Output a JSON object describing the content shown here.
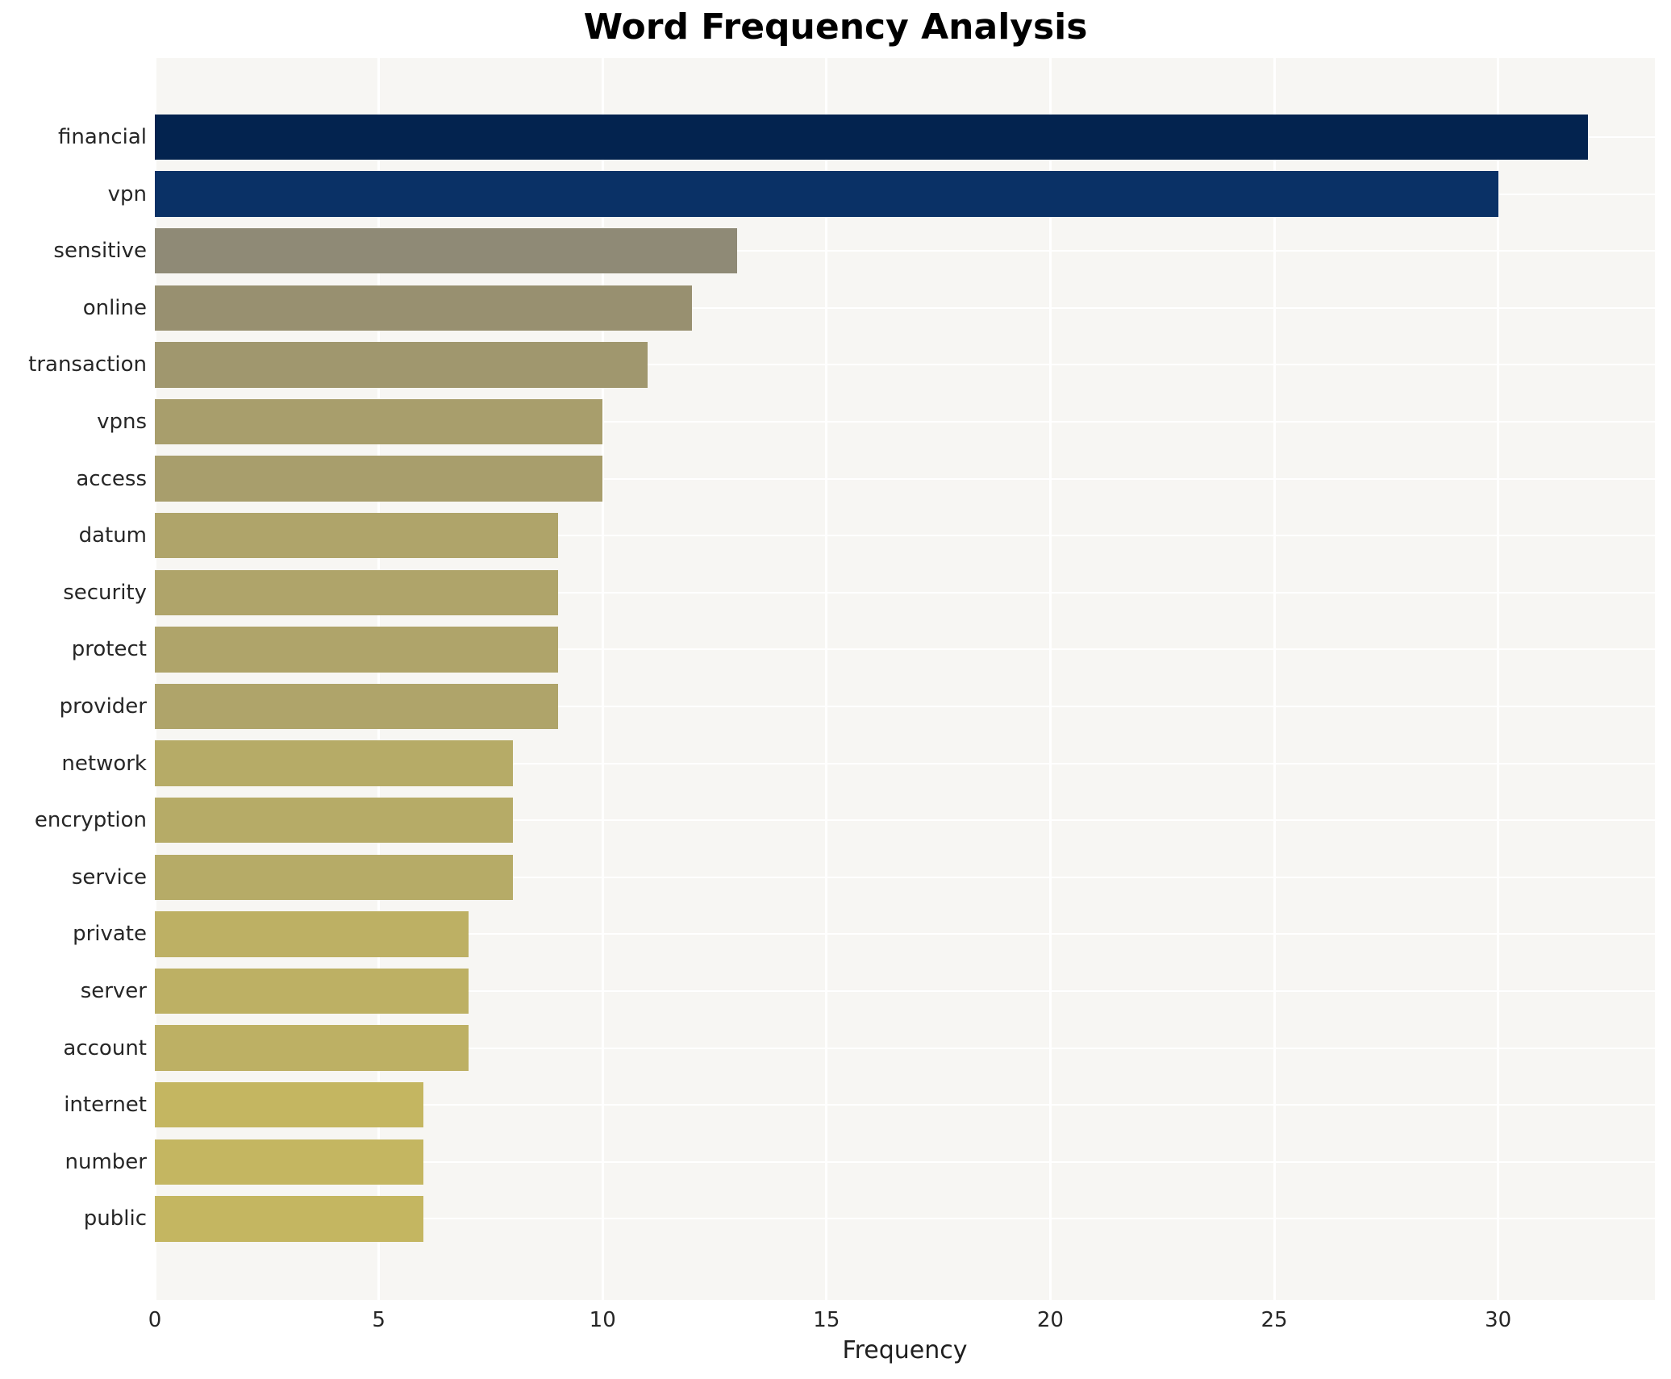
{
  "chart_data": {
    "type": "bar",
    "orientation": "horizontal",
    "title": "Word Frequency Analysis",
    "xlabel": "Frequency",
    "ylabel": "",
    "categories": [
      "financial",
      "vpn",
      "sensitive",
      "online",
      "transaction",
      "vpns",
      "access",
      "datum",
      "security",
      "protect",
      "provider",
      "network",
      "encryption",
      "service",
      "private",
      "server",
      "account",
      "internet",
      "number",
      "public"
    ],
    "values": [
      32,
      30,
      13,
      12,
      11,
      10,
      10,
      9,
      9,
      9,
      9,
      8,
      8,
      8,
      7,
      7,
      7,
      6,
      6,
      6
    ],
    "x_ticks": [
      0,
      5,
      10,
      15,
      20,
      25,
      30
    ],
    "xlim": [
      0,
      33.5
    ],
    "grid": true,
    "legend": null,
    "colors": {
      "plot_background": "#f7f6f3",
      "grid_color": "#ffffff",
      "title_color": "#000000",
      "label_color": "#262626",
      "value_to_bar_color": {
        "32": "#03234f",
        "30": "#0a3166",
        "13": "#8f8a76",
        "12": "#989070",
        "11": "#a0976e",
        "10": "#a89e6c",
        "9": "#afa46a",
        "8": "#b6ab67",
        "7": "#bdb064",
        "6": "#c4b661"
      }
    }
  }
}
